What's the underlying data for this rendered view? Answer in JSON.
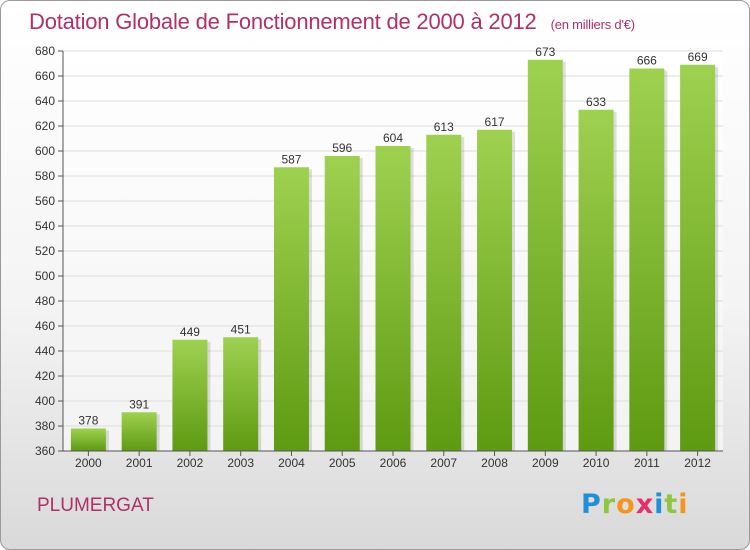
{
  "title": "Dotation Globale de Fonctionnement de 2000 à 2012",
  "unit": "(en milliers d'€)",
  "commune": "PLUMERGAT",
  "logo": {
    "letters": [
      {
        "ch": "P",
        "color": "#1f8fd6"
      },
      {
        "ch": "r",
        "color": "#8dc63f"
      },
      {
        "ch": "o",
        "color": "#f7941d"
      },
      {
        "ch": "x",
        "color": "#e62e6b"
      },
      {
        "ch": "i",
        "color": "#1f8fd6"
      },
      {
        "ch": "t",
        "color": "#8dc63f"
      },
      {
        "ch": "i",
        "color": "#f7941d"
      }
    ]
  },
  "chart_data": {
    "type": "bar",
    "categories": [
      "2000",
      "2001",
      "2002",
      "2003",
      "2004",
      "2005",
      "2006",
      "2007",
      "2008",
      "2009",
      "2010",
      "2011",
      "2012"
    ],
    "values": [
      378,
      391,
      449,
      451,
      587,
      596,
      604,
      613,
      617,
      673,
      633,
      666,
      669
    ],
    "ylim": [
      360,
      680
    ],
    "yticks": [
      360,
      380,
      400,
      420,
      440,
      460,
      480,
      500,
      520,
      540,
      560,
      580,
      600,
      620,
      640,
      660,
      680
    ],
    "grid": true,
    "colors": {
      "bar_top": "#9fd150",
      "bar_bottom": "#5e9a12",
      "grid": "#dddddd",
      "axis": "#555555"
    }
  }
}
